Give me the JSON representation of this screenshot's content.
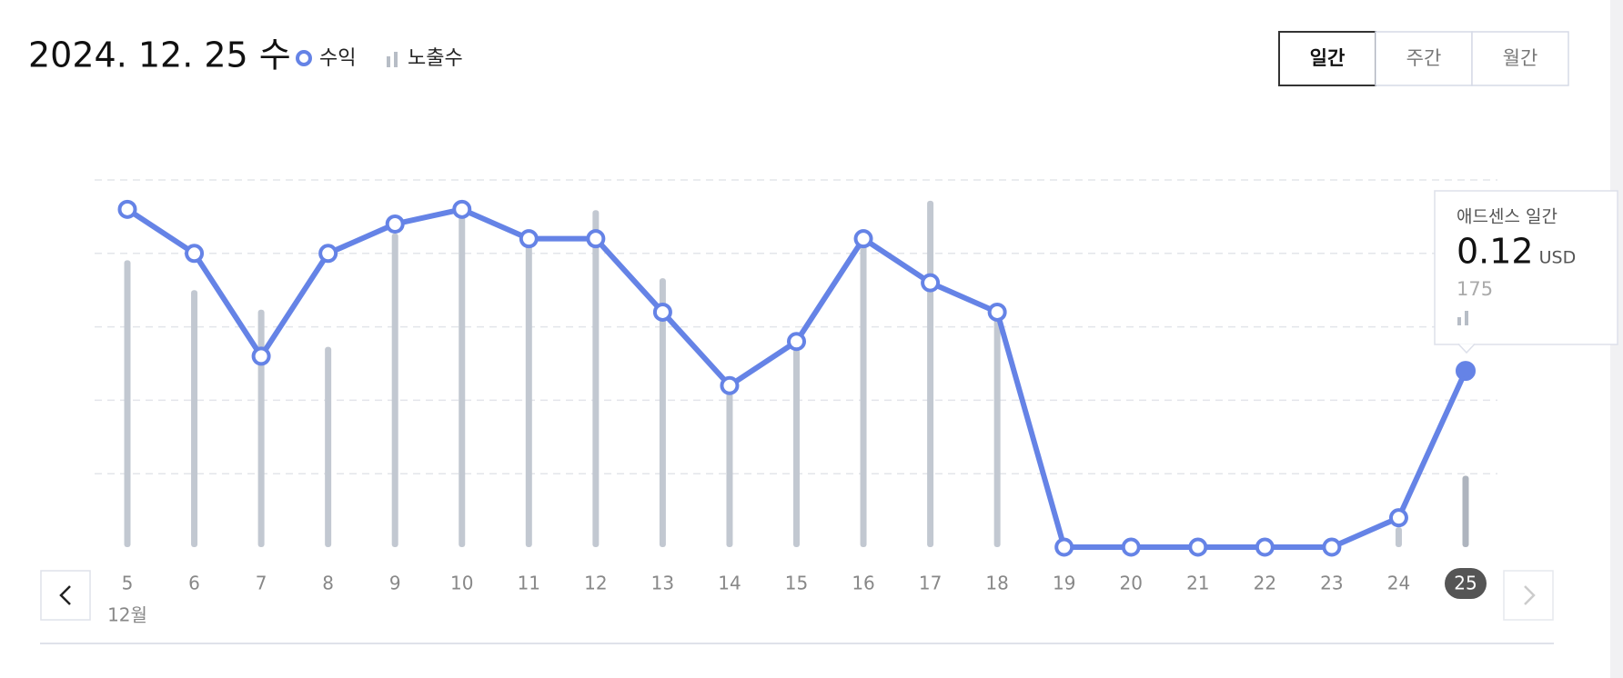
{
  "chart_data": {
    "type": "combo",
    "title": "2024. 12. 25 수",
    "period_buttons": [
      "일간",
      "주간",
      "월간"
    ],
    "month_label": "12월",
    "categories": [
      "5",
      "6",
      "7",
      "8",
      "9",
      "10",
      "11",
      "12",
      "13",
      "14",
      "15",
      "16",
      "17",
      "18",
      "19",
      "20",
      "21",
      "22",
      "23",
      "24",
      "25"
    ],
    "series": [
      {
        "name": "수익",
        "color": "#6583e6",
        "type": "line",
        "values": [
          0.23,
          0.2,
          0.13,
          0.2,
          0.22,
          0.23,
          0.21,
          0.21,
          0.16,
          0.11,
          0.14,
          0.21,
          0.18,
          0.16,
          0,
          0,
          0,
          0,
          0,
          0.02,
          0.12
        ]
      },
      {
        "name": "노출수",
        "color": "#c2c8d1",
        "type": "bar",
        "axis": "y2",
        "values": [
          703,
          630,
          582,
          491,
          769,
          821,
          749,
          826,
          659,
          383,
          486,
          744,
          849,
          576,
          0,
          0,
          0,
          0,
          0,
          49,
          175
        ]
      }
    ],
    "ylim": [
      0,
      0.25
    ],
    "yticks": [
      0,
      0.05,
      0.1,
      0.15,
      0.2,
      0.25
    ],
    "y2lim": [
      0,
      900
    ],
    "grid": true,
    "tooltip": {
      "title": "애드센스 일간",
      "unit": "USD"
    }
  }
}
